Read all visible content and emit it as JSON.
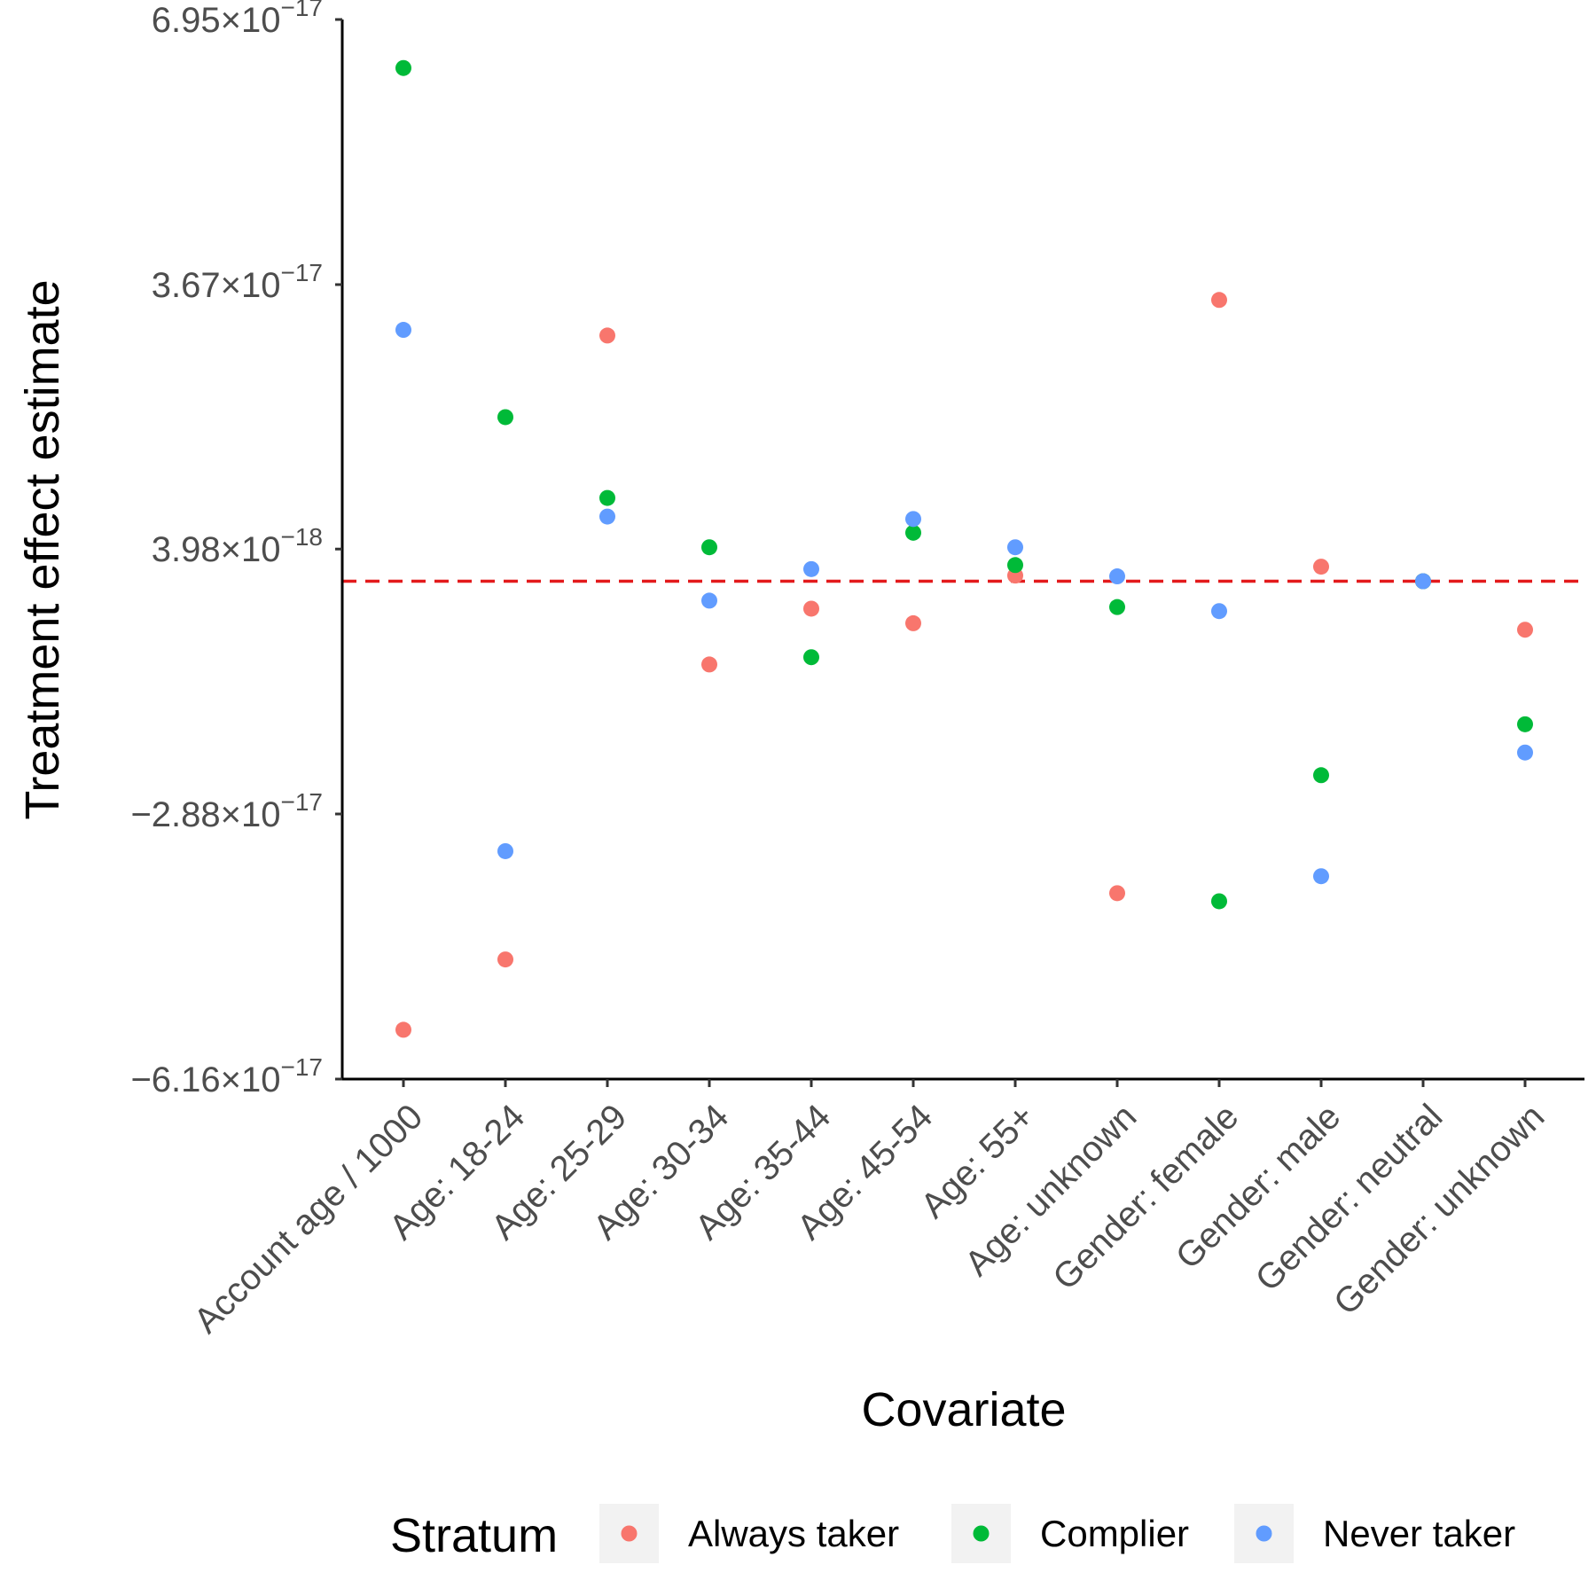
{
  "chart_data": {
    "type": "scatter",
    "title": "",
    "xlabel": "Covariate",
    "ylabel": "Treatment effect estimate",
    "categories": [
      "Account age / 1000",
      "Age: 18-24",
      "Age: 25-29",
      "Age: 30-34",
      "Age: 35-44",
      "Age: 45-54",
      "Age: 55+",
      "Age: unknown",
      "Gender: female",
      "Gender: male",
      "Gender: neutral",
      "Gender: unknown"
    ],
    "y_ticks": [
      {
        "value": -6.16e-17,
        "mantissa": "−6.16",
        "exponent": "−17"
      },
      {
        "value": -2.88e-17,
        "mantissa": "−2.88",
        "exponent": "−17"
      },
      {
        "value": 3.98e-18,
        "mantissa": "3.98",
        "exponent": "−18"
      },
      {
        "value": 3.67e-17,
        "mantissa": "3.67",
        "exponent": "−17"
      },
      {
        "value": 6.95e-17,
        "mantissa": "6.95",
        "exponent": "−17"
      }
    ],
    "times_sign": "×",
    "base_ten": "10",
    "ylim": [
      -6.16e-17,
      6.95e-17
    ],
    "reference_line": {
      "y": 0,
      "style": "dashed",
      "color": "#e31a1c"
    },
    "grid": false,
    "legend": {
      "title": "Stratum",
      "position": "bottom"
    },
    "series": [
      {
        "name": "Always taker",
        "color": "#F8766D",
        "values": [
          -5.55e-17,
          -4.68e-17,
          3.04e-17,
          -1.03e-17,
          -3.4e-18,
          -5.2e-18,
          7e-19,
          -3.86e-17,
          3.48e-17,
          1.8e-18,
          0,
          -6e-18
        ]
      },
      {
        "name": "Complier",
        "color": "#00BA38",
        "values": [
          6.35e-17,
          2.03e-17,
          1.03e-17,
          4.2e-18,
          -9.4e-18,
          6e-18,
          2e-18,
          -3.2e-18,
          -3.96e-17,
          -2.4e-17,
          0,
          -1.77e-17
        ]
      },
      {
        "name": "Never taker",
        "color": "#619CFF",
        "values": [
          3.11e-17,
          -3.34e-17,
          8e-18,
          -2.4e-18,
          1.5e-18,
          7.7e-18,
          4.2e-18,
          6e-19,
          -3.7e-18,
          -3.65e-17,
          0,
          -2.12e-17
        ]
      }
    ]
  }
}
